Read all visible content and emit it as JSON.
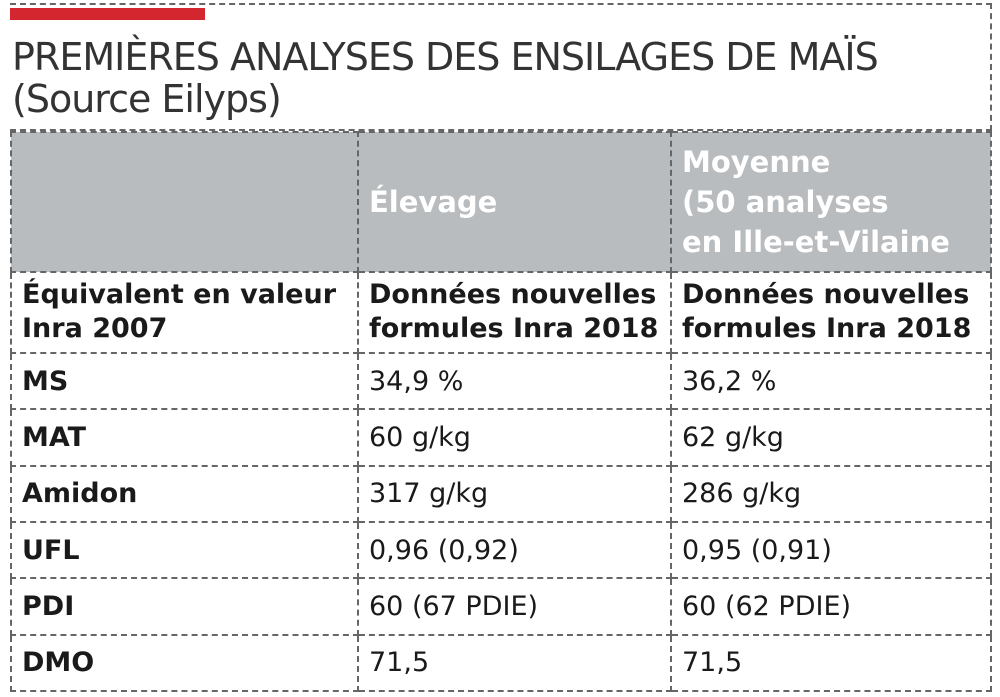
{
  "title": {
    "line1": "PREMIÈRES ANALYSES DES ENSILAGES DE MAÏS",
    "line2": "(Source Eilyps)"
  },
  "colors": {
    "accent": "#d4262f",
    "header_bg": "#b8bcbe",
    "border": "#666666"
  },
  "table": {
    "header": {
      "col1": "",
      "col2": "Élevage",
      "col3_lines": [
        "Moyenne",
        "(50 analyses",
        "en Ille-et-Vilaine"
      ]
    },
    "subheader": {
      "col1_lines": [
        "Équivalent en valeur",
        "Inra 2007"
      ],
      "col2_lines": [
        "Données nouvelles",
        "formules Inra 2018"
      ],
      "col3_lines": [
        "Données nouvelles",
        "formules Inra 2018"
      ]
    },
    "rows": [
      {
        "label": "MS",
        "elevage": "34,9 %",
        "moyenne": "36,2 %"
      },
      {
        "label": "MAT",
        "elevage": "60 g/kg",
        "moyenne": "62 g/kg"
      },
      {
        "label": "Amidon",
        "elevage": "317 g/kg",
        "moyenne": "286 g/kg"
      },
      {
        "label": "UFL",
        "elevage": "0,96 (0,92)",
        "moyenne": "0,95 (0,91)"
      },
      {
        "label": "PDI",
        "elevage": " 60 (67 PDIE)",
        "moyenne": " 60 (62 PDIE)"
      },
      {
        "label": "DMO",
        "elevage": " 71,5",
        "moyenne": " 71,5"
      }
    ]
  }
}
